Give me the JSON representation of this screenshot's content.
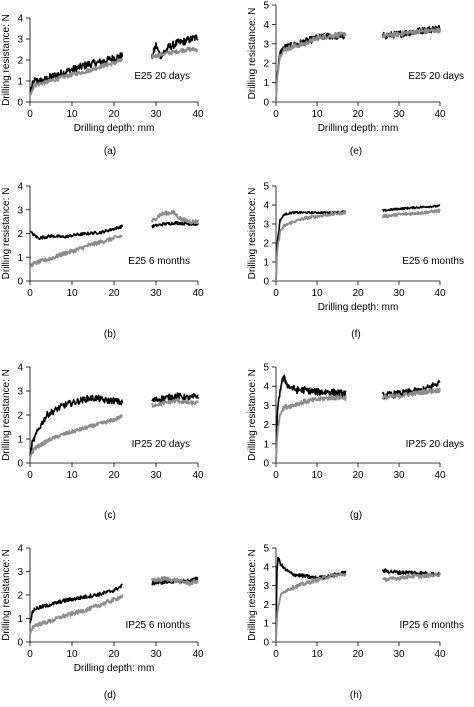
{
  "chart_data": [
    {
      "panel": "(a)",
      "label": "E25 20 days",
      "type": "line",
      "xlabel": "Drilling depth: mm",
      "ylabel": "Drilling resistance: N",
      "xlim": [
        0,
        40
      ],
      "ylim": [
        0,
        4
      ],
      "xticks": [
        0,
        10,
        20,
        30,
        40
      ],
      "yticks": [
        0,
        1,
        2,
        3,
        4
      ],
      "segments": [
        [
          0,
          22
        ],
        [
          29,
          40
        ]
      ],
      "series": [
        {
          "color": "#000000",
          "x": [
            0,
            1,
            3,
            5,
            8,
            11,
            14,
            17,
            20,
            22,
            29,
            30,
            31,
            33,
            35,
            37,
            40
          ],
          "y": [
            0.5,
            1.0,
            1.0,
            1.2,
            1.4,
            1.6,
            1.8,
            1.9,
            2.1,
            2.2,
            2.1,
            2.7,
            2.2,
            2.6,
            2.8,
            2.9,
            3.1
          ],
          "noise": 0.18
        },
        {
          "color": "#8c8c8c",
          "x": [
            0,
            1,
            3,
            5,
            8,
            11,
            14,
            17,
            20,
            22,
            30,
            32,
            35,
            37,
            40
          ],
          "y": [
            0.3,
            0.8,
            0.9,
            1.0,
            1.2,
            1.35,
            1.5,
            1.7,
            1.85,
            2.0,
            2.2,
            2.3,
            2.4,
            2.5,
            2.5
          ],
          "noise": 0.1
        }
      ]
    },
    {
      "panel": "(e)",
      "label": "E25 20 days",
      "type": "line",
      "xlabel": "Drilling depth: mm",
      "ylabel": "Drilling resistance: N",
      "xlim": [
        0,
        40
      ],
      "ylim": [
        0,
        5
      ],
      "xticks": [
        0,
        10,
        20,
        30,
        40
      ],
      "yticks": [
        0,
        1,
        2,
        3,
        4,
        5
      ],
      "segments": [
        [
          0,
          17
        ],
        [
          26,
          40
        ]
      ],
      "series": [
        {
          "color": "#000000",
          "x": [
            0,
            0.3,
            1,
            2,
            4,
            7,
            10,
            13,
            17,
            26,
            30,
            33,
            36,
            40
          ],
          "y": [
            0,
            1.5,
            2.5,
            2.8,
            2.9,
            3.1,
            3.3,
            3.4,
            3.4,
            3.4,
            3.5,
            3.6,
            3.7,
            3.8
          ],
          "noise": 0.18
        },
        {
          "color": "#8c8c8c",
          "x": [
            0,
            0.3,
            1,
            2,
            4,
            7,
            10,
            13,
            17,
            26,
            30,
            33,
            36,
            40
          ],
          "y": [
            0,
            1.4,
            2.4,
            2.7,
            2.85,
            3.0,
            3.3,
            3.4,
            3.5,
            3.4,
            3.5,
            3.6,
            3.65,
            3.7
          ],
          "noise": 0.12
        }
      ]
    },
    {
      "panel": "(b)",
      "label": "E25 6 months",
      "type": "line",
      "xlabel": "",
      "ylabel": "Drilling resistance: N",
      "xlim": [
        0,
        40
      ],
      "ylim": [
        0,
        4
      ],
      "xticks": [
        0,
        10,
        20,
        30,
        40
      ],
      "yticks": [
        0,
        1,
        2,
        3,
        4
      ],
      "segments": [
        [
          0,
          22
        ],
        [
          29,
          40
        ]
      ],
      "series": [
        {
          "color": "#000000",
          "x": [
            0,
            0.5,
            2,
            5,
            8,
            11,
            14,
            17,
            20,
            22,
            29,
            32,
            35,
            38,
            40
          ],
          "y": [
            2.1,
            2.0,
            1.8,
            1.9,
            1.85,
            1.95,
            2.0,
            2.05,
            2.2,
            2.3,
            2.3,
            2.4,
            2.45,
            2.4,
            2.4
          ],
          "noise": 0.06
        },
        {
          "color": "#8c8c8c",
          "x": [
            0,
            0.5,
            2,
            5,
            8,
            11,
            14,
            17,
            20,
            22,
            29,
            31,
            34,
            36,
            38,
            40
          ],
          "y": [
            0.6,
            0.7,
            0.8,
            0.95,
            1.15,
            1.3,
            1.5,
            1.65,
            1.8,
            1.9,
            2.5,
            2.8,
            2.9,
            2.6,
            2.5,
            2.5
          ],
          "noise": 0.09
        }
      ]
    },
    {
      "panel": "(f)",
      "label": "E25 6 months",
      "type": "line",
      "xlabel": "Drilling depth: mm",
      "ylabel": "Drilling resistance: N",
      "xlim": [
        0,
        40
      ],
      "ylim": [
        0,
        5
      ],
      "xticks": [
        0,
        10,
        20,
        30,
        40
      ],
      "yticks": [
        0,
        1,
        2,
        3,
        4,
        5
      ],
      "segments": [
        [
          0,
          17
        ],
        [
          26,
          40
        ]
      ],
      "series": [
        {
          "color": "#000000",
          "x": [
            0,
            0.3,
            1,
            2,
            4,
            7,
            10,
            13,
            17,
            26,
            30,
            33,
            36,
            40
          ],
          "y": [
            0,
            2.0,
            3.2,
            3.5,
            3.6,
            3.6,
            3.6,
            3.6,
            3.65,
            3.7,
            3.8,
            3.85,
            3.9,
            3.95
          ],
          "noise": 0.05
        },
        {
          "color": "#8c8c8c",
          "x": [
            0,
            0.3,
            1,
            2,
            4,
            7,
            10,
            13,
            17,
            26,
            30,
            33,
            36,
            40
          ],
          "y": [
            0,
            1.6,
            2.6,
            2.9,
            3.1,
            3.3,
            3.4,
            3.5,
            3.6,
            3.4,
            3.5,
            3.55,
            3.6,
            3.7
          ],
          "noise": 0.08
        }
      ]
    },
    {
      "panel": "(c)",
      "label": "IP25 20 days",
      "type": "line",
      "xlabel": "",
      "ylabel": "Drilling resistance: N",
      "xlim": [
        0,
        40
      ],
      "ylim": [
        0,
        4
      ],
      "xticks": [
        0,
        10,
        20,
        30,
        40
      ],
      "yticks": [
        0,
        1,
        2,
        3,
        4
      ],
      "segments": [
        [
          0,
          22
        ],
        [
          29,
          40
        ]
      ],
      "series": [
        {
          "color": "#000000",
          "x": [
            0,
            0.5,
            1,
            2,
            3,
            4,
            6,
            8,
            10,
            12,
            14,
            16,
            18,
            20,
            22,
            29,
            32,
            35,
            38,
            40
          ],
          "y": [
            0.3,
            0.8,
            1.0,
            1.4,
            1.7,
            2.0,
            2.2,
            2.4,
            2.5,
            2.6,
            2.7,
            2.7,
            2.6,
            2.6,
            2.5,
            2.6,
            2.7,
            2.8,
            2.7,
            2.8
          ],
          "noise": 0.13
        },
        {
          "color": "#8c8c8c",
          "x": [
            0,
            1,
            3,
            5,
            8,
            11,
            14,
            17,
            20,
            22,
            29,
            32,
            35,
            38,
            40
          ],
          "y": [
            0.2,
            0.6,
            0.8,
            1.0,
            1.2,
            1.35,
            1.5,
            1.65,
            1.8,
            1.95,
            2.4,
            2.5,
            2.6,
            2.5,
            2.5
          ],
          "noise": 0.08
        }
      ]
    },
    {
      "panel": "(g)",
      "label": "IP25 20 days",
      "type": "line",
      "xlabel": "",
      "ylabel": "Drilling resistance: N",
      "xlim": [
        0,
        40
      ],
      "ylim": [
        0,
        5
      ],
      "xticks": [
        0,
        10,
        20,
        30,
        40
      ],
      "yticks": [
        0,
        1,
        2,
        3,
        4,
        5
      ],
      "segments": [
        [
          0,
          17
        ],
        [
          26,
          40
        ]
      ],
      "series": [
        {
          "color": "#000000",
          "x": [
            0,
            0.3,
            1,
            1.5,
            2,
            3,
            5,
            7,
            10,
            13,
            17,
            26,
            30,
            33,
            36,
            40
          ],
          "y": [
            0,
            2.5,
            3.8,
            4.3,
            4.4,
            4.0,
            3.8,
            3.8,
            3.7,
            3.7,
            3.6,
            3.5,
            3.6,
            3.7,
            3.8,
            4.2
          ],
          "noise": 0.18
        },
        {
          "color": "#8c8c8c",
          "x": [
            0,
            0.3,
            1,
            2,
            4,
            7,
            10,
            13,
            17,
            26,
            30,
            33,
            36,
            40
          ],
          "y": [
            0,
            1.5,
            2.6,
            2.9,
            3.0,
            3.2,
            3.3,
            3.4,
            3.4,
            3.4,
            3.5,
            3.6,
            3.7,
            3.8
          ],
          "noise": 0.12
        }
      ]
    },
    {
      "panel": "(d)",
      "label": "IP25 6 months",
      "type": "line",
      "xlabel": "Drilling depth: mm",
      "ylabel": "Drilling resistance: N",
      "xlim": [
        0,
        40
      ],
      "ylim": [
        0,
        4
      ],
      "xticks": [
        0,
        10,
        20,
        30,
        40
      ],
      "yticks": [
        0,
        1,
        2,
        3,
        4
      ],
      "segments": [
        [
          0,
          22
        ],
        [
          29,
          40
        ]
      ],
      "series": [
        {
          "color": "#000000",
          "x": [
            0,
            0.5,
            1,
            3,
            5,
            8,
            11,
            14,
            17,
            20,
            22,
            29,
            32,
            35,
            38,
            40
          ],
          "y": [
            0.8,
            1.2,
            1.4,
            1.5,
            1.6,
            1.75,
            1.85,
            1.95,
            2.05,
            2.2,
            2.4,
            2.5,
            2.55,
            2.6,
            2.6,
            2.7
          ],
          "noise": 0.08
        },
        {
          "color": "#8c8c8c",
          "x": [
            0,
            0.5,
            1,
            3,
            5,
            8,
            11,
            14,
            17,
            20,
            22,
            29,
            32,
            35,
            38,
            40
          ],
          "y": [
            0.3,
            0.6,
            0.7,
            0.8,
            0.9,
            1.1,
            1.25,
            1.4,
            1.6,
            1.8,
            1.95,
            2.6,
            2.7,
            2.6,
            2.5,
            2.6
          ],
          "noise": 0.09
        }
      ]
    },
    {
      "panel": "(h)",
      "label": "IP25 6 months",
      "type": "line",
      "xlabel": "",
      "ylabel": "Drilling resistance: N",
      "xlim": [
        0,
        40
      ],
      "ylim": [
        0,
        5
      ],
      "xticks": [
        0,
        10,
        20,
        30,
        40
      ],
      "yticks": [
        0,
        1,
        2,
        3,
        4,
        5
      ],
      "segments": [
        [
          0,
          17
        ],
        [
          26,
          40
        ]
      ],
      "series": [
        {
          "color": "#000000",
          "x": [
            0,
            0.2,
            0.5,
            1,
            2,
            4,
            7,
            10,
            13,
            17,
            26,
            30,
            33,
            36,
            40
          ],
          "y": [
            0,
            3.5,
            4.5,
            4.2,
            3.9,
            3.6,
            3.5,
            3.4,
            3.5,
            3.7,
            3.8,
            3.7,
            3.7,
            3.65,
            3.6
          ],
          "noise": 0.1
        },
        {
          "color": "#8c8c8c",
          "x": [
            0,
            0.3,
            1,
            2,
            4,
            7,
            10,
            13,
            17,
            26,
            30,
            33,
            36,
            40
          ],
          "y": [
            0,
            1.5,
            2.4,
            2.7,
            2.9,
            3.1,
            3.3,
            3.5,
            3.6,
            3.3,
            3.4,
            3.5,
            3.5,
            3.6
          ],
          "noise": 0.1
        }
      ]
    }
  ]
}
